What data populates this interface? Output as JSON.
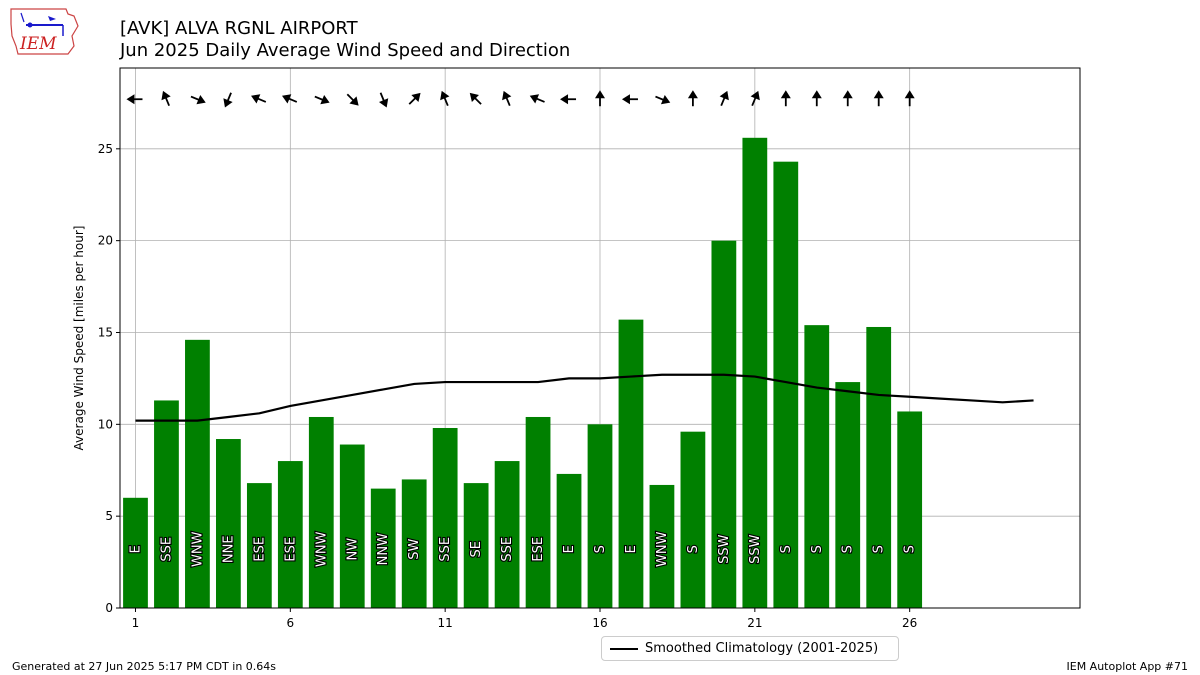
{
  "logo_text": "IEM",
  "title_line1": "[AVK] ALVA RGNL AIRPORT",
  "title_line2": "Jun 2025 Daily Average Wind Speed and Direction",
  "footer_left": "Generated at 27 Jun 2025 5:17 PM CDT in 0.64s",
  "footer_right": "IEM Autoplot App #71",
  "legend_label": "Smoothed Climatology (2001-2025)",
  "chart_data": {
    "type": "bar",
    "title": "Jun 2025 Daily Average Wind Speed and Direction",
    "ylabel": "Average Wind Speed [miles per hour]",
    "xlim": [
      0.5,
      31.5
    ],
    "ylim": [
      0,
      29.4
    ],
    "xticks": [
      1,
      6,
      11,
      16,
      21,
      26
    ],
    "yticks": [
      0,
      5,
      10,
      15,
      20,
      25
    ],
    "grid": true,
    "legend_position": "below-right",
    "bar_color": "#008000",
    "days": [
      1,
      2,
      3,
      4,
      5,
      6,
      7,
      8,
      9,
      10,
      11,
      12,
      13,
      14,
      15,
      16,
      17,
      18,
      19,
      20,
      21,
      22,
      23,
      24,
      25,
      26
    ],
    "speeds": [
      6.0,
      11.3,
      14.6,
      9.2,
      6.8,
      8.0,
      10.4,
      8.9,
      6.5,
      7.0,
      9.8,
      6.8,
      8.0,
      10.4,
      7.3,
      10.0,
      15.7,
      6.7,
      9.6,
      20.0,
      25.6,
      24.3,
      15.4,
      12.3,
      15.3,
      10.7
    ],
    "directions": [
      "E",
      "SSE",
      "WNW",
      "NNE",
      "ESE",
      "ESE",
      "WNW",
      "NW",
      "NNW",
      "SW",
      "SSE",
      "SE",
      "SSE",
      "ESE",
      "E",
      "S",
      "E",
      "WNW",
      "S",
      "SSW",
      "SSW",
      "S",
      "S",
      "S",
      "S",
      "S"
    ],
    "climatology": {
      "name": "Smoothed Climatology (2001-2025)",
      "x": [
        1,
        2,
        3,
        4,
        5,
        6,
        7,
        8,
        9,
        10,
        11,
        12,
        13,
        14,
        15,
        16,
        17,
        18,
        19,
        20,
        21,
        22,
        23,
        24,
        25,
        26,
        27,
        28,
        29,
        30
      ],
      "y": [
        10.2,
        10.2,
        10.2,
        10.4,
        10.6,
        11.0,
        11.3,
        11.6,
        11.9,
        12.2,
        12.3,
        12.3,
        12.3,
        12.3,
        12.5,
        12.5,
        12.6,
        12.7,
        12.7,
        12.7,
        12.6,
        12.3,
        12.0,
        11.8,
        11.6,
        11.5,
        11.4,
        11.3,
        11.2,
        11.3
      ]
    }
  }
}
